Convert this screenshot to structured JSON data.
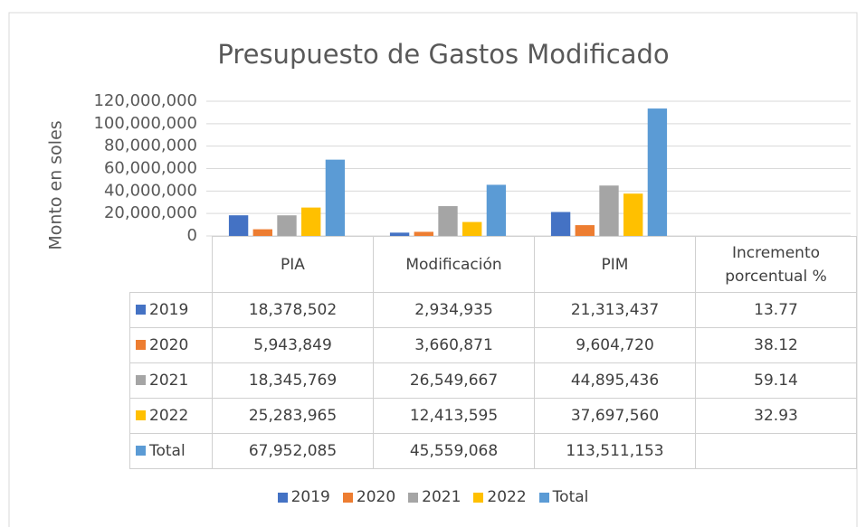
{
  "chart_data": {
    "type": "bar",
    "title": "Presupuesto de Gastos Modificado",
    "y_label": "Monto en soles",
    "categories": [
      "PIA",
      "Modificación",
      "PIM",
      "Incremento porcentual %"
    ],
    "series": [
      {
        "name": "2019",
        "color": "#4472c4",
        "values": [
          18378502,
          2934935,
          21313437,
          13.77
        ],
        "value_labels": [
          "18,378,502",
          "2,934,935",
          "21,313,437",
          "13.77"
        ]
      },
      {
        "name": "2020",
        "color": "#ed7d31",
        "values": [
          5943849,
          3660871,
          9604720,
          38.12
        ],
        "value_labels": [
          "5,943,849",
          "3,660,871",
          "9,604,720",
          "38.12"
        ]
      },
      {
        "name": "2021",
        "color": "#a5a5a5",
        "values": [
          18345769,
          26549667,
          44895436,
          59.14
        ],
        "value_labels": [
          "18,345,769",
          "26,549,667",
          "44,895,436",
          "59.14"
        ]
      },
      {
        "name": "2022",
        "color": "#ffc000",
        "values": [
          25283965,
          12413595,
          37697560,
          32.93
        ],
        "value_labels": [
          "25,283,965",
          "12,413,595",
          "37,697,560",
          "32.93"
        ]
      },
      {
        "name": "Total",
        "color": "#5b9bd5",
        "values": [
          67952085,
          45559068,
          113511153,
          null
        ],
        "value_labels": [
          "67,952,085",
          "45,559,068",
          "113,511,153",
          null
        ]
      }
    ],
    "ylim": [
      0,
      120000000
    ],
    "yticks": [
      0,
      {
        "value": 20000000,
        "label": "20,000,000"
      },
      {
        "value": 40000000,
        "label": "40,000,000"
      },
      {
        "value": 60000000,
        "label": "60,000,000"
      },
      {
        "value": 80000000,
        "label": "80,000,000"
      },
      {
        "value": 100000000,
        "label": "100,000,000"
      },
      {
        "value": 120000000,
        "label": "120,000,000"
      }
    ],
    "grid": true,
    "legend": "bottom"
  }
}
